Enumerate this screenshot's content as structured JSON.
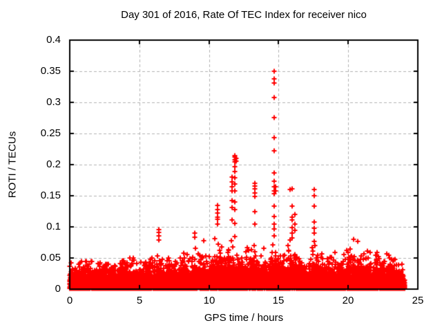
{
  "chart_data": {
    "type": "scatter",
    "title": "Day 301 of 2016, Rate Of TEC Index for receiver nico",
    "xlabel": "GPS time / hours",
    "ylabel": "ROTI / TECUs",
    "xlim": [
      0,
      25
    ],
    "ylim": [
      0,
      0.4
    ],
    "xticks": {
      "values": [
        0,
        5,
        10,
        15,
        20,
        25
      ],
      "labels": [
        "0",
        "5",
        "10",
        "15",
        "20",
        "25"
      ]
    },
    "yticks": {
      "values": [
        0,
        0.05,
        0.1,
        0.15,
        0.2,
        0.25,
        0.3,
        0.35,
        0.4
      ],
      "labels": [
        "0",
        "0.05",
        "0.1",
        "0.15",
        "0.2",
        "0.25",
        "0.3",
        "0.35",
        "0.4"
      ]
    },
    "grid": "dashed-major",
    "legend": "none",
    "marker": "plus",
    "marker_color": "#ff0000",
    "grid_color": "#b0b0b0",
    "axis_color": "#000000",
    "band_description": "dense noise band of + markers covering 0 to ~0.04 TECU for all times 0-24 h, ragged top, with isolated vertical spike columns",
    "data_hours_extent": [
      0.0,
      24.05
    ],
    "band_envelope": {
      "x": [
        0.0,
        0.3,
        0.7,
        1.0,
        1.4,
        1.8,
        2.2,
        2.6,
        3.0,
        3.4,
        3.8,
        4.2,
        4.45,
        4.7,
        5.0,
        5.4,
        5.7,
        6.0,
        6.4,
        6.8,
        7.2,
        7.6,
        8.0,
        8.3,
        8.6,
        9.0,
        9.3,
        9.6,
        10.0,
        10.3,
        10.6,
        11.0,
        11.3,
        11.7,
        11.9,
        12.2,
        12.5,
        12.75,
        13.0,
        13.3,
        13.6,
        13.9,
        14.2,
        14.5,
        14.7,
        15.0,
        15.3,
        15.6,
        15.9,
        16.2,
        16.5,
        16.8,
        17.1,
        17.5,
        17.8,
        18.1,
        18.45,
        18.7,
        19.0,
        19.3,
        19.6,
        20.0,
        20.4,
        20.7,
        21.0,
        21.3,
        21.7,
        22.1,
        22.5,
        22.8,
        23.2,
        23.6,
        24.0,
        24.05
      ],
      "max": [
        0.048,
        0.04,
        0.044,
        0.046,
        0.052,
        0.042,
        0.048,
        0.057,
        0.05,
        0.044,
        0.05,
        0.058,
        0.064,
        0.052,
        0.046,
        0.062,
        0.067,
        0.05,
        0.075,
        0.055,
        0.057,
        0.052,
        0.055,
        0.072,
        0.056,
        0.076,
        0.06,
        0.072,
        0.058,
        0.07,
        0.095,
        0.07,
        0.075,
        0.085,
        0.09,
        0.062,
        0.07,
        0.08,
        0.068,
        0.09,
        0.065,
        0.072,
        0.078,
        0.08,
        0.095,
        0.07,
        0.062,
        0.07,
        0.085,
        0.095,
        0.068,
        0.06,
        0.062,
        0.08,
        0.065,
        0.06,
        0.058,
        0.068,
        0.06,
        0.055,
        0.058,
        0.068,
        0.078,
        0.07,
        0.072,
        0.066,
        0.06,
        0.066,
        0.062,
        0.058,
        0.052,
        0.048,
        0.038,
        0.03
      ]
    },
    "spikes": [
      {
        "x": 6.42,
        "y": [
          0.096,
          0.091,
          0.086,
          0.079
        ]
      },
      {
        "x": 8.99,
        "y": [
          0.09,
          0.083
        ]
      },
      {
        "x": 9.6,
        "y": [
          0.078
        ]
      },
      {
        "x": 10.6,
        "y": [
          0.134,
          0.128,
          0.122,
          0.116,
          0.112,
          0.105
        ]
      },
      {
        "x": 11.68,
        "y": [
          0.18,
          0.172,
          0.165,
          0.158,
          0.142,
          0.131,
          0.111
        ]
      },
      {
        "x": 11.86,
        "y": [
          0.215,
          0.212,
          0.208,
          0.204,
          0.197,
          0.189,
          0.179,
          0.169,
          0.158,
          0.14,
          0.128,
          0.106,
          0.085
        ]
      },
      {
        "x": 11.97,
        "y": [
          0.21,
          0.206
        ]
      },
      {
        "x": 13.29,
        "y": [
          0.17,
          0.166,
          0.161,
          0.155,
          0.149,
          0.125,
          0.105
        ]
      },
      {
        "x": 14.68,
        "y": [
          0.35,
          0.338,
          0.331,
          0.308,
          0.275,
          0.243,
          0.222,
          0.187,
          0.173,
          0.165,
          0.158,
          0.153,
          0.133,
          0.117,
          0.105,
          0.097,
          0.086
        ]
      },
      {
        "x": 14.78,
        "y": [
          0.165,
          0.158
        ]
      },
      {
        "x": 15.8,
        "y": [
          0.16
        ]
      },
      {
        "x": 15.96,
        "y": [
          0.161,
          0.133,
          0.116,
          0.111,
          0.099,
          0.09,
          0.082
        ]
      },
      {
        "x": 16.15,
        "y": [
          0.12,
          0.105,
          0.095
        ]
      },
      {
        "x": 17.55,
        "y": [
          0.16,
          0.15,
          0.133,
          0.108,
          0.098,
          0.09,
          0.077
        ]
      },
      {
        "x": 20.4,
        "y": [
          0.08
        ]
      },
      {
        "x": 20.7,
        "y": [
          0.077
        ]
      }
    ]
  }
}
